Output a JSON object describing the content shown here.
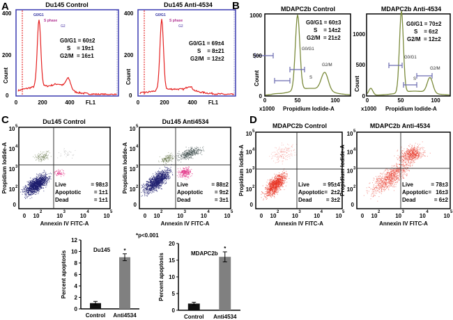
{
  "panels": {
    "A": {
      "label": "A",
      "plots": [
        {
          "title": "Du145 Control",
          "stats": [
            "G0/G1 = 60±2",
            "S    = 19±1",
            "G2/M  = 16±1"
          ]
        },
        {
          "title": "Du145 Anti-4534",
          "stats": [
            "G0/G1 = 69±4",
            "S    = 8±21",
            "G2/M  = 12±2"
          ]
        }
      ],
      "gates": [
        "G0/G1",
        "S phase",
        "G2"
      ],
      "y_ticks": [
        "400",
        "200",
        "0"
      ],
      "x_ticks": [
        "0",
        "200",
        "400"
      ],
      "xlabel": "FL1",
      "ylabel": "Count",
      "colors": {
        "frame": "#3a3ab0",
        "trace": "#e52020",
        "gate_line": "#e00000"
      }
    },
    "B": {
      "label": "B",
      "plots": [
        {
          "title": "MDAPC2b Control",
          "stats": [
            "G0/G1 = 60±3",
            "S    = 14±2",
            "G2/M  = 21±2"
          ],
          "y_ticks": [
            "1000",
            "500",
            "0"
          ]
        },
        {
          "title": "MDAPC2b Anti-4534",
          "stats": [
            "G0/G1 = 70±2",
            "S    = 6±2",
            "G2/M  = 12±2"
          ],
          "y_ticks": [
            "1000",
            "500",
            "0"
          ]
        }
      ],
      "gates": [
        "G0/G1",
        "S",
        "G2/M"
      ],
      "x_ticks": [
        "0",
        "50",
        "100"
      ],
      "x_multiplier": "x1000",
      "xlabel": "Propidium Iodide-A",
      "ylabel": "Count",
      "colors": {
        "trace": "#7a8a3a",
        "gate": "#6a6ab0"
      }
    },
    "C": {
      "label": "C",
      "plots": [
        {
          "title": "Du145 Control",
          "stats": [
            [
              "Live",
              "= 98±3"
            ],
            [
              "Apoptotic",
              "= 1±1"
            ],
            [
              "Dead",
              "= 1±1"
            ]
          ]
        },
        {
          "title": "Du145 Anti4534",
          "stats": [
            [
              "Live",
              "= 88±2"
            ],
            [
              "Apoptotic",
              "= 9±2"
            ],
            [
              "Dead",
              "= 3±1"
            ]
          ]
        }
      ],
      "xlabel": "Annexin IV FITC-A",
      "ylabel": "Propidium Iodide-A",
      "colors": {
        "live": "#1e1e6e",
        "apoptotic": "#e0207a",
        "dead": "#6a7a50"
      }
    },
    "D": {
      "label": "D",
      "plots": [
        {
          "title": "MDAPC2b Control",
          "stats": [
            [
              "Live",
              "= 95±4"
            ],
            [
              "Apoptotic=",
              "2±2"
            ],
            [
              "Dead",
              "= 3±2"
            ]
          ]
        },
        {
          "title": "MDAPC2b Anti-4534",
          "stats": [
            [
              "Live",
              "= 78±3"
            ],
            [
              "Apoptotic=",
              "16±3"
            ],
            [
              "Dead",
              "= 6±2"
            ]
          ]
        }
      ],
      "xlabel": "Annexin IV FITC-A",
      "ylabel": "Propidium Iodide-A",
      "colors": {
        "points": "#e83020"
      }
    },
    "log_ticks": {
      "zero": "0",
      "base": "10",
      "exps": [
        "2",
        "3",
        "4",
        "5"
      ]
    }
  },
  "significance_note": "*p<0.001",
  "chart_data": [
    {
      "type": "bar",
      "title": "Du145",
      "categories": [
        "Control",
        "Anti4534"
      ],
      "values": [
        1,
        9
      ],
      "errors": [
        0.3,
        0.6
      ],
      "markers": [
        "",
        "*"
      ],
      "ylabel": "Percent apoptosis",
      "ylim": [
        0,
        12
      ],
      "yticks": [
        "0",
        "2",
        "4",
        "6",
        "8",
        "10",
        "12"
      ],
      "colors": [
        "#111111",
        "#808080"
      ]
    },
    {
      "type": "bar",
      "title": "MDAPC2b",
      "categories": [
        "Control",
        "Anti4534"
      ],
      "values": [
        2,
        16
      ],
      "errors": [
        0.4,
        1.5
      ],
      "markers": [
        "",
        "*"
      ],
      "ylabel": "Percent apoptosis",
      "ylim": [
        0,
        20
      ],
      "yticks": [
        "0",
        "5",
        "10",
        "15",
        "20"
      ],
      "colors": [
        "#111111",
        "#808080"
      ]
    }
  ]
}
